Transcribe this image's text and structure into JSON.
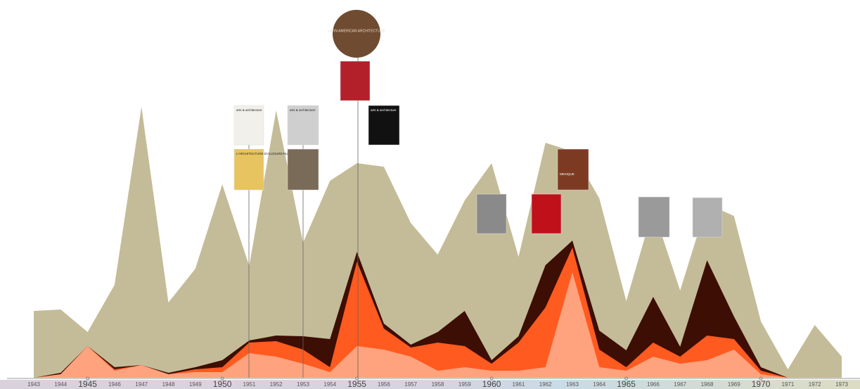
{
  "chart_data": {
    "type": "area",
    "categories": [
      "1943",
      "1944",
      "1945",
      "1946",
      "1947",
      "1948",
      "1949",
      "1950",
      "1951",
      "1952",
      "1953",
      "1954",
      "1955",
      "1956",
      "1957",
      "1958",
      "1959",
      "1960",
      "1961",
      "1962",
      "1963",
      "1964",
      "1965",
      "1966",
      "1967",
      "1968",
      "1969",
      "1970",
      "1971",
      "1972",
      "1973"
    ],
    "ylim": [
      0,
      400
    ],
    "series": [
      {
        "color": "#c4bc98",
        "values": [
          95,
          97,
          65,
          132,
          385,
          107,
          155,
          275,
          159,
          380,
          192,
          280,
          305,
          300,
          220,
          175,
          252,
          305,
          172,
          334,
          322,
          255,
          109,
          240,
          124,
          247,
          230,
          80,
          12,
          75,
          30
        ]
      },
      {
        "color": "#3d0e04",
        "values": [
          0,
          7,
          45,
          15,
          18,
          7,
          15,
          25,
          53,
          60,
          59,
          55,
          179,
          77,
          47,
          65,
          95,
          25,
          59,
          160,
          195,
          67,
          39,
          115,
          44,
          167,
          87,
          15,
          0,
          0,
          0
        ]
      },
      {
        "color": "#ff5a20",
        "values": [
          0,
          5,
          45,
          12,
          18,
          5,
          12,
          15,
          50,
          52,
          40,
          15,
          165,
          70,
          43,
          50,
          45,
          20,
          50,
          100,
          185,
          40,
          15,
          50,
          30,
          60,
          55,
          10,
          0,
          0,
          0
        ]
      },
      {
        "color": "#ffa27e",
        "values": [
          0,
          5,
          45,
          10,
          18,
          5,
          8,
          8,
          35,
          30,
          20,
          8,
          45,
          40,
          30,
          10,
          15,
          10,
          10,
          15,
          150,
          15,
          10,
          30,
          20,
          25,
          40,
          5,
          0,
          0,
          0
        ]
      }
    ]
  },
  "covers": [
    "LATIN AMERICAN ARCHITECTURE",
    "arts & architecture",
    "L'ARCHITECTURE D'AUJOURD'HUI",
    "arts & architecture",
    "arts & architecture",
    "MEXIQUE"
  ]
}
